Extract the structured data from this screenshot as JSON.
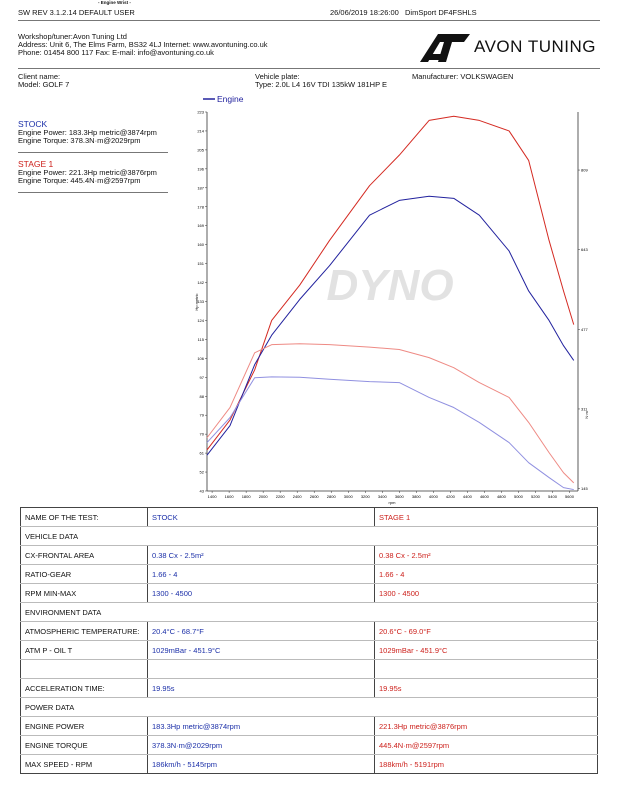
{
  "header": {
    "product": "- Engine Wrist -",
    "software": "SW REV 3.1.2.14   DEFAULT USER",
    "datetime": "26/06/2019 18:26:00",
    "device": "DimSport DF4FSHLS"
  },
  "workshop": [
    "Workshop/tuner:Avon Tuning Ltd",
    "Address: Unit 6, The Elms Farm, BS32 4LJ Internet: www.avontuning.co.uk",
    "Phone: 01454 800 117 Fax:  E-mail: info@avontuning.co.uk"
  ],
  "logo": "AVON TUNING",
  "vehicle": {
    "client": "Client name:",
    "model": "Model: GOLF 7",
    "plate": "Vehicle plate:",
    "type": "Type: 2.0L L4 16V TDI 135kW 181HP E",
    "manufacturer": "Manufacturer: VOLKSWAGEN"
  },
  "summary": [
    {
      "name": "STOCK",
      "power": "Engine Power: 183.3Hp metric@3874rpm",
      "torque": "Engine Torque: 378.3N·m@2029rpm"
    },
    {
      "name": "STAGE 1",
      "power": "Engine Power: 221.3Hp metric@3876rpm",
      "torque": "Engine Torque: 445.4N·m@2597rpm"
    }
  ],
  "chart_data": {
    "type": "line",
    "legend": "Engine",
    "watermark": "DYNO",
    "x_label": "rpm",
    "y_label": "Hp metric",
    "y2_label": "N·m",
    "x": [
      1340,
      1610,
      1900,
      2100,
      2430,
      2780,
      3250,
      3600,
      3950,
      4240,
      4540,
      4890,
      5120,
      5360,
      5530,
      5650
    ],
    "series": [
      {
        "color": "#d42a22",
        "values": [
          62.5,
          76.7,
          100.5,
          124,
          140.8,
          162,
          188,
          202.5,
          219,
          221,
          219,
          214,
          200,
          162,
          138,
          122
        ]
      },
      {
        "color": "#22229e",
        "values": [
          60,
          74,
          103,
          117,
          134,
          150,
          174,
          181,
          183,
          182,
          174,
          157,
          138,
          124,
          112,
          105
        ]
      },
      {
        "color": "#ee8a84",
        "axis": "y2",
        "values": [
          251,
          314,
          428,
          445,
          447,
          445,
          440,
          435,
          418,
          397,
          366,
          335,
          283,
          220,
          178,
          157
        ]
      },
      {
        "color": "#9090e0",
        "axis": "y2",
        "values": [
          241,
          293,
          376,
          378,
          377,
          373,
          368,
          366,
          335,
          314,
          283,
          241,
          199,
          168,
          147,
          143
        ]
      }
    ],
    "xlim": [
      1340,
      5700
    ],
    "xticks": [
      1400,
      1600,
      1800,
      2000,
      2200,
      2400,
      2600,
      2800,
      3000,
      3200,
      3400,
      3600,
      3800,
      4000,
      4200,
      4400,
      4600,
      4800,
      5000,
      5200,
      5400,
      5600
    ],
    "ylim": [
      43,
      223
    ],
    "yticks": [
      43,
      52,
      61,
      70,
      79,
      88,
      97,
      106,
      115,
      124,
      133,
      142,
      151,
      160,
      169,
      178,
      187,
      196,
      205,
      214,
      223
    ],
    "y2lim": [
      140,
      930
    ],
    "y2ticks": [
      145,
      311,
      477,
      643,
      809
    ]
  },
  "table": {
    "rows": [
      [
        "NAME OF THE TEST:",
        "STOCK",
        "STAGE 1"
      ],
      [
        "VEHICLE DATA"
      ],
      [
        "CX-FRONTAL AREA",
        "0.38 Cx - 2.5m²",
        "0.38 Cx - 2.5m²"
      ],
      [
        "RATIO-GEAR",
        "1.66 - 4",
        "1.66 - 4"
      ],
      [
        "RPM MIN-MAX",
        "1300 - 4500",
        "1300 - 4500"
      ],
      [
        "ENVIRONMENT DATA"
      ],
      [
        "ATMOSPHERIC TEMPERATURE:",
        "20.4°C - 68.7°F",
        "20.6°C - 69.0°F"
      ],
      [
        "ATM P - OIL T",
        "1029mBar - 451.9°C",
        "1029mBar - 451.9°C"
      ],
      [
        "ACCELERATION TIME:",
        "19.95s",
        "19.95s"
      ],
      [
        "POWER DATA"
      ],
      [
        "ENGINE POWER",
        "183.3Hp metric@3874rpm",
        "221.3Hp metric@3876rpm"
      ],
      [
        "ENGINE TORQUE",
        "378.3N·m@2029rpm",
        "445.4N·m@2597rpm"
      ],
      [
        "MAX SPEED - RPM",
        "186km/h - 5145rpm",
        "188km/h - 5191rpm"
      ]
    ]
  }
}
